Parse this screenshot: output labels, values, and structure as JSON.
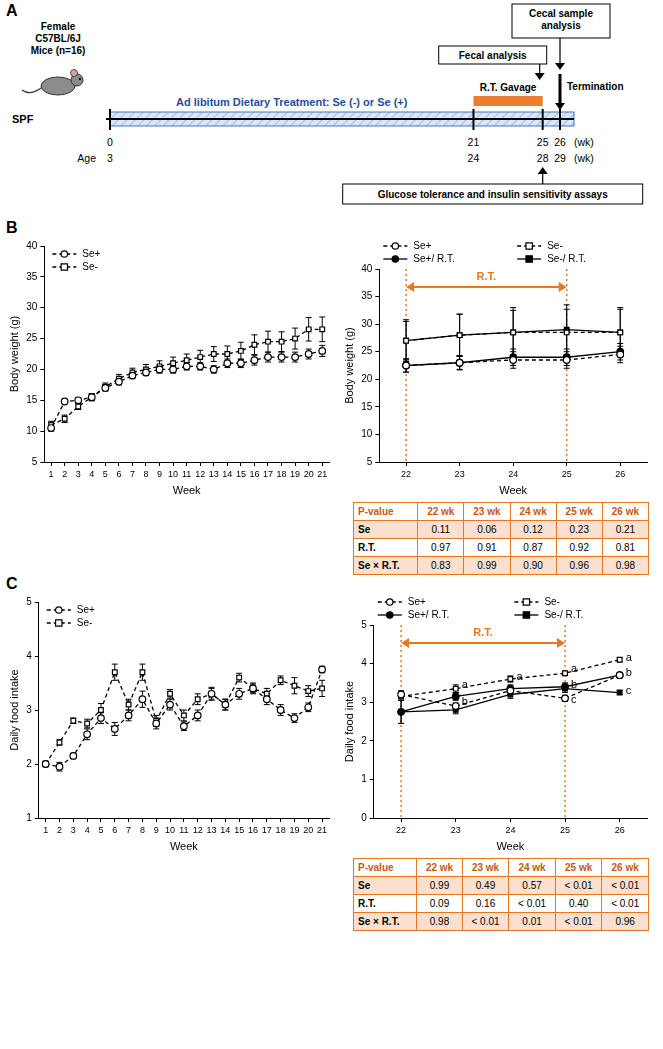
{
  "panel_letters": [
    "A",
    "B",
    "C"
  ],
  "diagram": {
    "subject": "Female C57BL/6J Mice (n=16)",
    "facility": "SPF",
    "treatment": "Ad libitum Dietary Treatment: Se (-) or Se (+)",
    "gavage": "R.T. Gavage",
    "gavage_weeks": [
      21,
      25
    ],
    "weeks": [
      0,
      21,
      25,
      26
    ],
    "ages": [
      3,
      24,
      28,
      29
    ],
    "unit": "(wk)",
    "age_label": "Age",
    "events": [
      {
        "label": "Fecal analysis",
        "week": 25
      },
      {
        "label": "Cecal sample analysis",
        "week": 26
      },
      {
        "label": "Termination",
        "week": 26
      },
      {
        "label": "Glucose tolerance and insulin sensitivity assays",
        "week": 25
      }
    ]
  },
  "chart_data": [
    {
      "type": "line",
      "xlabel": "Week",
      "ylabel": "Body weight (g)",
      "x": [
        1,
        2,
        3,
        4,
        5,
        6,
        7,
        8,
        9,
        10,
        11,
        12,
        13,
        14,
        15,
        16,
        17,
        18,
        19,
        20,
        21
      ],
      "xlim": [
        0.5,
        21.5
      ],
      "xticks": [
        1,
        2,
        3,
        4,
        5,
        6,
        7,
        8,
        9,
        10,
        11,
        12,
        13,
        14,
        15,
        16,
        17,
        18,
        19,
        20,
        21
      ],
      "ylim": [
        5,
        40
      ],
      "yticks": [
        5,
        10,
        15,
        20,
        25,
        30,
        35,
        40
      ],
      "grid": false,
      "legend": "upper left",
      "series": [
        {
          "name": "Se+",
          "color": "#000000",
          "marker": "circle-open",
          "line_style": "dashed",
          "values": [
            10.5,
            14.8,
            15,
            15.5,
            17,
            18,
            19,
            19.5,
            20,
            20,
            20.5,
            20.5,
            20,
            21,
            21,
            21.5,
            22,
            22,
            22,
            22.5,
            23
          ],
          "errors": [
            0.5,
            0.3,
            0.4,
            0.5,
            0.5,
            0.5,
            0.5,
            0.5,
            0.6,
            0.6,
            0.6,
            0.6,
            0.6,
            0.7,
            0.7,
            0.8,
            0.8,
            0.8,
            0.8,
            0.8,
            0.9
          ]
        },
        {
          "name": "Se-",
          "color": "#000000",
          "marker": "square-open",
          "line_style": "dashed",
          "values": [
            11,
            12,
            14,
            15.5,
            17.2,
            18.5,
            19.5,
            20,
            20.5,
            21,
            21.5,
            22,
            22.5,
            22.5,
            23,
            24,
            24.5,
            24.5,
            25,
            26.5,
            26.5
          ],
          "errors": [
            0.6,
            0.6,
            0.5,
            0.6,
            0.6,
            0.7,
            0.7,
            0.8,
            0.9,
            1.0,
            1.0,
            1.1,
            1.2,
            1.3,
            1.4,
            1.6,
            1.7,
            1.6,
            1.7,
            1.9,
            2.0
          ]
        }
      ]
    },
    {
      "type": "line",
      "xlabel": "Week",
      "ylabel": "Body weight (g)",
      "x": [
        22,
        23,
        24,
        25,
        26
      ],
      "xlim": [
        21.5,
        26.5
      ],
      "xticks": [
        22,
        23,
        24,
        25,
        26
      ],
      "ylim": [
        5,
        40
      ],
      "yticks": [
        5,
        10,
        15,
        20,
        25,
        30,
        35,
        40
      ],
      "grid": false,
      "legend": "top",
      "period": {
        "label": "R.T.",
        "x": [
          22,
          25
        ],
        "color": "#e87722"
      },
      "series": [
        {
          "name": "Se+",
          "color": "#000000",
          "marker": "circle-open",
          "line_style": "dashed",
          "values": [
            22.5,
            23,
            23.5,
            23.5,
            24.5
          ],
          "errors": [
            1.2,
            1.3,
            1.5,
            1.5,
            1.5
          ]
        },
        {
          "name": "Se-",
          "color": "#000000",
          "marker": "square-open",
          "line_style": "dashed",
          "values": [
            27,
            28,
            28.5,
            28.5,
            28.5
          ],
          "errors": [
            3.5,
            3.8,
            4.0,
            4.2,
            4.2
          ]
        },
        {
          "name": "Se+/ R.T.",
          "color": "#000000",
          "marker": "circle",
          "line_style": "solid",
          "values": [
            22.5,
            23,
            24,
            24,
            25
          ],
          "errors": [
            1.2,
            1.2,
            1.5,
            1.5,
            1.5
          ]
        },
        {
          "name": "Se-/ R.T.",
          "color": "#000000",
          "marker": "square",
          "line_style": "solid",
          "values": [
            27,
            28,
            28.5,
            29,
            28.5
          ],
          "errors": [
            3.8,
            3.8,
            4.5,
            4.5,
            4.5
          ]
        }
      ]
    },
    {
      "type": "line",
      "xlabel": "Week",
      "ylabel": "Daily food intake",
      "x": [
        1,
        2,
        3,
        4,
        5,
        6,
        7,
        8,
        9,
        10,
        11,
        12,
        13,
        14,
        15,
        16,
        17,
        18,
        19,
        20,
        21
      ],
      "xlim": [
        0.5,
        21.5
      ],
      "xticks": [
        1,
        2,
        3,
        4,
        5,
        6,
        7,
        8,
        9,
        10,
        11,
        12,
        13,
        14,
        15,
        16,
        17,
        18,
        19,
        20,
        21
      ],
      "ylim": [
        1,
        5
      ],
      "yticks": [
        1,
        2,
        3,
        4,
        5
      ],
      "grid": false,
      "legend": "upper left",
      "series": [
        {
          "name": "Se+",
          "color": "#000000",
          "marker": "circle-open",
          "line_style": "dashed",
          "values": [
            2.0,
            1.95,
            2.15,
            2.55,
            2.85,
            2.65,
            2.9,
            3.2,
            2.75,
            3.1,
            2.7,
            2.9,
            3.3,
            3.1,
            3.3,
            3.4,
            3.2,
            3.0,
            2.85,
            3.05,
            3.75
          ],
          "errors": [
            0.05,
            0.08,
            0.05,
            0.1,
            0.1,
            0.12,
            0.1,
            0.15,
            0.1,
            0.1,
            0.08,
            0.1,
            0.12,
            0.1,
            0.1,
            0.08,
            0.1,
            0.1,
            0.08,
            0.08,
            0.06
          ]
        },
        {
          "name": "Se-",
          "color": "#000000",
          "marker": "square-open",
          "line_style": "dashed",
          "values": [
            2.0,
            2.4,
            2.8,
            2.75,
            3.0,
            3.7,
            3.1,
            3.7,
            2.8,
            3.3,
            2.9,
            3.2,
            3.3,
            3.1,
            3.6,
            3.4,
            3.3,
            3.55,
            3.45,
            3.35,
            3.4
          ],
          "errors": [
            0.05,
            0.05,
            0.05,
            0.08,
            0.12,
            0.15,
            0.1,
            0.15,
            0.1,
            0.08,
            0.1,
            0.1,
            0.1,
            0.1,
            0.08,
            0.1,
            0.1,
            0.08,
            0.15,
            0.1,
            0.15
          ]
        }
      ]
    },
    {
      "type": "line",
      "xlabel": "Week",
      "ylabel": "Daily food intake",
      "x": [
        22,
        23,
        24,
        25,
        26
      ],
      "xlim": [
        21.5,
        26.5
      ],
      "xticks": [
        22,
        23,
        24,
        25,
        26
      ],
      "ylim": [
        0,
        5
      ],
      "yticks": [
        0,
        1,
        2,
        3,
        4,
        5
      ],
      "grid": false,
      "legend": "top",
      "period": {
        "label": "R.T.",
        "x": [
          22,
          25
        ],
        "color": "#e87722"
      },
      "annotations": [
        {
          "x": 23,
          "y": 3.45,
          "text": "a"
        },
        {
          "x": 23,
          "y": 3.0,
          "text": "b"
        },
        {
          "x": 24,
          "y": 3.65,
          "text": "a"
        },
        {
          "x": 25,
          "y": 3.85,
          "text": "a"
        },
        {
          "x": 25,
          "y": 3.45,
          "text": "b"
        },
        {
          "x": 25,
          "y": 3.05,
          "text": "c"
        },
        {
          "x": 26,
          "y": 4.15,
          "text": "a"
        },
        {
          "x": 26,
          "y": 3.75,
          "text": "b"
        },
        {
          "x": 26,
          "y": 3.3,
          "text": "c"
        }
      ],
      "series": [
        {
          "name": "Se+",
          "color": "#000000",
          "marker": "circle-open",
          "line_style": "dashed",
          "values": [
            3.2,
            2.9,
            3.3,
            3.1,
            3.7
          ],
          "errors": [
            0.1,
            0.08,
            0.1,
            0.08,
            0.05
          ]
        },
        {
          "name": "Se-",
          "color": "#000000",
          "marker": "square-open",
          "line_style": "dashed",
          "values": [
            3.15,
            3.35,
            3.6,
            3.75,
            4.1
          ],
          "errors": [
            0.1,
            0.1,
            0.08,
            0.05,
            0.05
          ]
        },
        {
          "name": "Se+/ R.T.",
          "color": "#000000",
          "marker": "circle",
          "line_style": "solid",
          "values": [
            2.75,
            3.15,
            3.35,
            3.4,
            3.7
          ],
          "errors": [
            0.3,
            0.1,
            0.1,
            0.1,
            0.05
          ]
        },
        {
          "name": "Se-/ R.T.",
          "color": "#000000",
          "marker": "square",
          "line_style": "solid",
          "values": [
            2.75,
            2.8,
            3.2,
            3.35,
            3.25
          ],
          "errors": [
            0.3,
            0.1,
            0.1,
            0.1,
            0.05
          ]
        }
      ]
    }
  ],
  "tables": [
    {
      "header": [
        "P-value",
        "22 wk",
        "23 wk",
        "24 wk",
        "25 wk",
        "26 wk"
      ],
      "rows": [
        [
          "Se",
          "0.11",
          "0.06",
          "0.12",
          "0.23",
          "0.21"
        ],
        [
          "R.T.",
          "0.97",
          "0.91",
          "0.87",
          "0.92",
          "0.81"
        ],
        [
          "Se × R.T.",
          "0.83",
          "0.99",
          "0.90",
          "0.96",
          "0.98"
        ]
      ]
    },
    {
      "header": [
        "P-value",
        "22 wk",
        "23 wk",
        "24 wk",
        "25 wk",
        "26 wk"
      ],
      "rows": [
        [
          "Se",
          "0.99",
          "0.49",
          "0.57",
          "< 0.01",
          "< 0.01"
        ],
        [
          "R.T.",
          "0.09",
          "0.16",
          "< 0.01",
          "0.40",
          "< 0.01"
        ],
        [
          "Se × R.T.",
          "0.98",
          "< 0.01",
          "0.01",
          "< 0.01",
          "0.96"
        ]
      ]
    }
  ]
}
